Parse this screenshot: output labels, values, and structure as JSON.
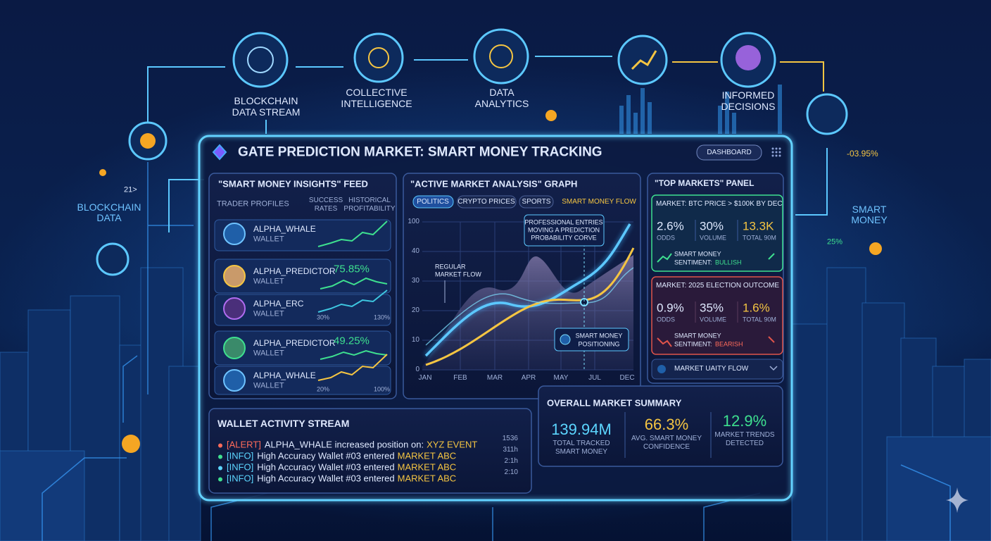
{
  "flow": {
    "nodes": [
      {
        "lines": [
          "BLOCKCHAIN",
          "DATA STREAM"
        ]
      },
      {
        "lines": [
          "COLLECTIVE",
          "INTELLIGENCE"
        ]
      },
      {
        "lines": [
          "DATA",
          "ANALYTICS"
        ]
      },
      {
        "lines": [
          "INFORMED",
          "DECISIONS"
        ]
      }
    ],
    "left_label": [
      "BLOCKCHAIN",
      "DATA"
    ],
    "left_value": "21>",
    "right_label": [
      "SMART",
      "MONEY"
    ],
    "right_change": "-03.95%",
    "right_pct": "25%"
  },
  "dashboard": {
    "title": "GATE PREDICTION MARKET: SMART MONEY TRACKING",
    "button": "DASHBOARD"
  },
  "feed": {
    "title": "\"SMART MONEY INSIGHTS\" FEED",
    "headers": {
      "profiles": "TRADER PROFILES",
      "success": [
        "SUCCESS",
        "RATES"
      ],
      "profit": [
        "HISTORICAL",
        "PROFITABILITY"
      ]
    },
    "traders": [
      {
        "name": "ALPHA_WHALE",
        "wallet": "WALLET"
      },
      {
        "name": "ALPHA_PREDICTOR",
        "wallet": "WALLET",
        "rate": "75.85%"
      },
      {
        "name": "ALPHA_ERC",
        "wallet": "WALLET",
        "axis": [
          "30%",
          "130%"
        ]
      },
      {
        "name": "ALPHA_PREDICTOR",
        "wallet": "WALLET",
        "rate": "49.25%"
      },
      {
        "name": "ALPHA_WHALE",
        "wallet": "WALLET",
        "axis": [
          "20%",
          "100%"
        ]
      }
    ]
  },
  "graph": {
    "title": "\"ACTIVE MARKET ANALYSIS\" GRAPH",
    "tabs": [
      "POLITICS",
      "CRYPTO PRICES",
      "SPORTS",
      "SMART MONEY FLOW"
    ],
    "y_labels": [
      100,
      40,
      30,
      20,
      10,
      0
    ],
    "x_labels": [
      "JAN",
      "FEB",
      "MAR",
      "APR",
      "MAY",
      "JUL",
      "DEC"
    ],
    "note_professional": [
      "PROFESSIONAL ENTRIES",
      "MOVING A PREDICTION",
      "PROBABILITY CORVE"
    ],
    "note_regular": [
      "REGULAR",
      "MARKET FLOW"
    ],
    "note_smart": [
      "SMART MONEY",
      "POSITIONING"
    ]
  },
  "top_markets": {
    "title": "\"TOP MARKETS\" PANEL",
    "cards": [
      {
        "market": "MARKET: BTC PRICE > $100K BY DEC",
        "stats": [
          {
            "value": "2.6%",
            "label": "ODDS"
          },
          {
            "value": "30%",
            "label": "VOLUME"
          },
          {
            "value": "13.3K",
            "label": "TOTAL 90M"
          }
        ],
        "sentiment_head": "SMART MONEY",
        "sentiment_label": "SENTIMENT:",
        "sentiment": "BULLISH"
      },
      {
        "market": "MARKET: 2025 ELECTION OUTCOME",
        "stats": [
          {
            "value": "0.9%",
            "label": "ODDS"
          },
          {
            "value": "35%",
            "label": "VOLUME"
          },
          {
            "value": "1.6%",
            "label": "TOTAL 90M"
          }
        ],
        "sentiment_head": "SMART MONEY",
        "sentiment_label": "SENTIMENT:",
        "sentiment": "BEARISH"
      }
    ],
    "flow_row": "MARKET UAITY FLOW"
  },
  "activity": {
    "title": "WALLET ACTIVITY STREAM",
    "items": [
      {
        "tag": "[ALERT]",
        "text": "ALPHA_WHALE increased position on:",
        "target": "XYZ EVENT",
        "time": "1536"
      },
      {
        "tag": "[INFO]",
        "text": "High Accuracy Wallet #03 entered",
        "target": "MARKET ABC",
        "time": "311h"
      },
      {
        "tag": "[INFO]",
        "text": "High Accuracy Wallet #03 entered",
        "target": "MARKET ABC",
        "time": "2:1h"
      },
      {
        "tag": "[INFO]",
        "text": "High Accuracy Wallet #03 entered",
        "target": "MARKET ABC",
        "time": "2:10"
      }
    ]
  },
  "summary": {
    "title": "OVERALL MARKET SUMMARY",
    "metrics": [
      {
        "value": "139.94M",
        "label": [
          "TOTAL TRACKED",
          "SMART MONEY"
        ]
      },
      {
        "value": "66.3%",
        "label": [
          "AVG. SMART MONEY",
          "CONFIDENCE"
        ]
      },
      {
        "value": "12.9%",
        "label": [
          "MARKET TRENDS",
          "DETECTED"
        ]
      }
    ]
  }
}
